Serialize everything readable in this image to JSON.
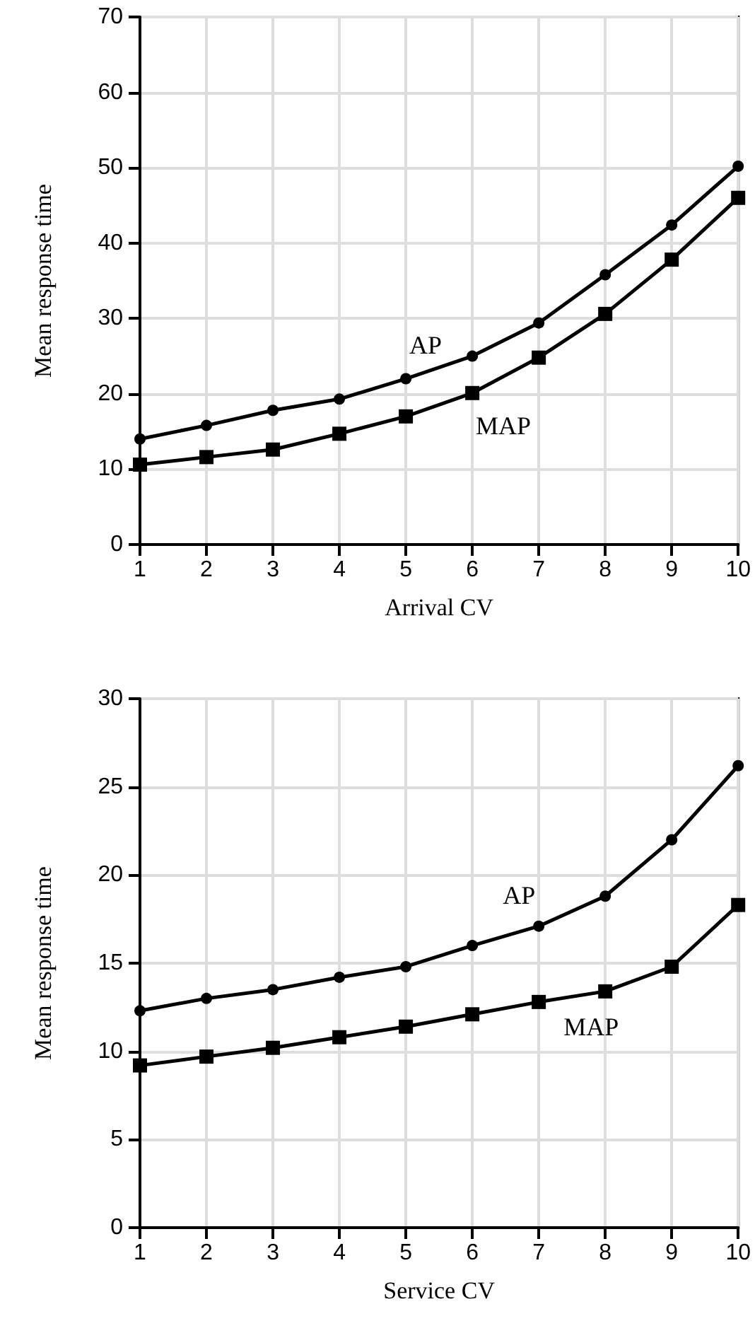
{
  "chart_data": [
    {
      "type": "line",
      "xlabel": "Arrival CV",
      "ylabel": "Mean response time",
      "x": [
        1,
        2,
        3,
        4,
        5,
        6,
        7,
        8,
        9,
        10
      ],
      "xlim": [
        1,
        10
      ],
      "xticks": [
        1,
        2,
        3,
        4,
        5,
        6,
        7,
        8,
        9,
        10
      ],
      "ylim": [
        0,
        70
      ],
      "yticks": [
        0,
        10,
        20,
        30,
        40,
        50,
        60,
        70
      ],
      "grid": true,
      "legend": false,
      "line_style": "solid",
      "series": [
        {
          "name": "AP",
          "color": "#000000",
          "marker": "circle",
          "values": [
            14,
            15.8,
            17.8,
            19.3,
            22,
            25,
            29.4,
            35.8,
            42.4,
            50.2
          ]
        },
        {
          "name": "MAP",
          "color": "#000000",
          "marker": "square",
          "values": [
            10.6,
            11.6,
            12.6,
            14.7,
            17,
            20.1,
            24.8,
            30.6,
            37.8,
            46
          ]
        }
      ]
    },
    {
      "type": "line",
      "xlabel": "Service CV",
      "ylabel": "Mean response time",
      "x": [
        1,
        2,
        3,
        4,
        5,
        6,
        7,
        8,
        9,
        10
      ],
      "xlim": [
        1,
        10
      ],
      "xticks": [
        1,
        2,
        3,
        4,
        5,
        6,
        7,
        8,
        9,
        10
      ],
      "ylim": [
        0,
        30
      ],
      "yticks": [
        0,
        5,
        10,
        15,
        20,
        25,
        30
      ],
      "grid": true,
      "legend": false,
      "line_style": "solid",
      "series": [
        {
          "name": "AP",
          "color": "#000000",
          "marker": "circle",
          "values": [
            12.3,
            13,
            13.5,
            14.2,
            14.8,
            16,
            17.1,
            18.8,
            22,
            26.2
          ]
        },
        {
          "name": "MAP",
          "color": "#000000",
          "marker": "square",
          "values": [
            9.2,
            9.7,
            10.2,
            10.8,
            11.4,
            12.1,
            12.8,
            13.4,
            14.8,
            18.3
          ]
        }
      ]
    }
  ]
}
